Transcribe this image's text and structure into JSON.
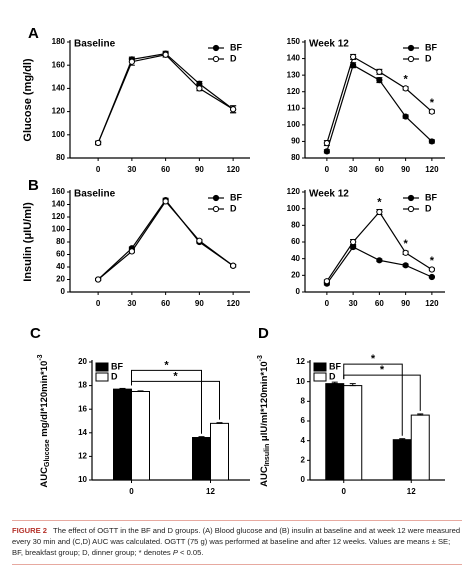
{
  "chart_data": [
    {
      "type": "line",
      "panel": "A",
      "title": "Baseline",
      "ylabel": "Glucose (mg/dl)",
      "x": [
        0,
        30,
        60,
        90,
        120
      ],
      "xticks": [
        0,
        30,
        60,
        90,
        120
      ],
      "xlim": [
        -25,
        135
      ],
      "ylim": [
        80,
        180
      ],
      "yticks": [
        80,
        100,
        120,
        140,
        160,
        180
      ],
      "legend": "upper right",
      "series": [
        {
          "name": "BF",
          "color": "#000000",
          "marker_fill": "#000000",
          "values": [
            93,
            165,
            170,
            144,
            122
          ],
          "errors": [
            1.5,
            2,
            2,
            2,
            3
          ]
        },
        {
          "name": "D",
          "color": "#000000",
          "marker_fill": "#ffffff",
          "values": [
            93,
            163,
            169,
            140,
            122
          ],
          "errors": [
            1.5,
            3,
            2,
            2,
            3
          ]
        }
      ]
    },
    {
      "type": "line",
      "title": "Week 12",
      "x": [
        0,
        30,
        60,
        90,
        120
      ],
      "xticks": [
        0,
        30,
        60,
        90,
        120
      ],
      "xlim": [
        -25,
        135
      ],
      "ylim": [
        80,
        150
      ],
      "yticks": [
        80,
        90,
        100,
        110,
        120,
        130,
        140,
        150
      ],
      "legend": "upper right",
      "series": [
        {
          "name": "BF",
          "color": "#000000",
          "marker_fill": "#000000",
          "values": [
            84,
            136,
            127,
            105,
            90
          ],
          "errors": [
            1,
            1.5,
            1.5,
            1,
            1
          ]
        },
        {
          "name": "D",
          "color": "#000000",
          "marker_fill": "#ffffff",
          "values": [
            89,
            141,
            132,
            122,
            108
          ],
          "errors": [
            1.5,
            1.5,
            1.5,
            1,
            1
          ]
        }
      ],
      "annotations": [
        {
          "x": 90,
          "text": "*"
        },
        {
          "x": 120,
          "text": "*"
        }
      ]
    },
    {
      "type": "line",
      "panel": "B",
      "title": "Baseline",
      "ylabel": "Insulin (μIU/ml)",
      "x": [
        0,
        30,
        60,
        90,
        120
      ],
      "xticks": [
        0,
        30,
        60,
        90,
        120
      ],
      "xlim": [
        -25,
        135
      ],
      "ylim": [
        0,
        160
      ],
      "yticks": [
        0,
        20,
        40,
        60,
        80,
        100,
        120,
        140,
        160
      ],
      "legend": "upper right",
      "series": [
        {
          "name": "BF",
          "color": "#000000",
          "marker_fill": "#000000",
          "values": [
            20,
            70,
            147,
            80,
            42
          ],
          "errors": [
            1.5,
            2,
            3,
            2,
            2
          ]
        },
        {
          "name": "D",
          "color": "#000000",
          "marker_fill": "#ffffff",
          "values": [
            20,
            65,
            145,
            82,
            42
          ],
          "errors": [
            1.5,
            2,
            3,
            2,
            2
          ]
        }
      ]
    },
    {
      "type": "line",
      "title": "Week 12",
      "x": [
        0,
        30,
        60,
        90,
        120
      ],
      "xticks": [
        0,
        30,
        60,
        90,
        120
      ],
      "xlim": [
        -25,
        135
      ],
      "ylim": [
        0,
        120
      ],
      "yticks": [
        0,
        20,
        40,
        60,
        80,
        100,
        120
      ],
      "legend": "upper right",
      "series": [
        {
          "name": "BF",
          "color": "#000000",
          "marker_fill": "#000000",
          "values": [
            10,
            54,
            38,
            32,
            18
          ],
          "errors": [
            1.5,
            2,
            1.5,
            1.5,
            1
          ]
        },
        {
          "name": "D",
          "color": "#000000",
          "marker_fill": "#ffffff",
          "values": [
            13,
            60,
            96,
            47,
            27
          ],
          "errors": [
            1.5,
            3,
            3,
            2,
            1.5
          ]
        }
      ],
      "annotations": [
        {
          "x": 60,
          "text": "*"
        },
        {
          "x": 90,
          "text": "*"
        },
        {
          "x": 120,
          "text": "*"
        }
      ]
    },
    {
      "type": "bar",
      "panel": "C",
      "ylabel_parts": [
        {
          "text": "AUC"
        },
        {
          "text": "Glucose",
          "sub": true
        },
        {
          "text": " mg/dl*120min*10"
        },
        {
          "text": "-3",
          "sup": true
        }
      ],
      "categories": [
        "0",
        "12"
      ],
      "ylim": [
        10,
        20
      ],
      "yticks": [
        10,
        12,
        14,
        16,
        18,
        20
      ],
      "legend": "upper left",
      "series": [
        {
          "name": "BF",
          "color": "#000000",
          "values": [
            17.7,
            13.6
          ],
          "errors": [
            0.06,
            0.07
          ]
        },
        {
          "name": "D",
          "color": "#ffffff",
          "values": [
            17.5,
            14.8
          ],
          "errors": [
            0.05,
            0.06
          ]
        }
      ],
      "annotations": [
        "*",
        "*"
      ]
    },
    {
      "type": "bar",
      "panel": "D",
      "ylabel_parts": [
        {
          "text": "AUC"
        },
        {
          "text": "Insulin",
          "sub": true
        },
        {
          "text": " μIU/ml*120min*10"
        },
        {
          "text": "-3",
          "sup": true
        }
      ],
      "categories": [
        "0",
        "12"
      ],
      "ylim": [
        0,
        12
      ],
      "yticks": [
        0,
        2,
        4,
        6,
        8,
        10,
        12
      ],
      "legend": "upper left",
      "series": [
        {
          "name": "BF",
          "color": "#000000",
          "values": [
            9.8,
            4.1
          ],
          "errors": [
            0.15,
            0.1
          ]
        },
        {
          "name": "D",
          "color": "#ffffff",
          "values": [
            9.6,
            6.6
          ],
          "errors": [
            0.2,
            0.12
          ]
        }
      ],
      "annotations": [
        "*",
        "*"
      ]
    }
  ],
  "caption": {
    "label": "FIGURE 2",
    "parts": [
      {
        "text": "The effect of OGTT in the BF and D groups. (A) Blood glucose and (B) insulin at baseline and at week 12 were measured every 30 min and (C,D) AUC was calculated. OGTT (75 g) was performed at baseline and after 12 weeks. Values are means ± SE; BF, breakfast group; D, dinner group; * denotes "
      },
      {
        "text": "P",
        "italic": true
      },
      {
        "text": " < 0.05."
      }
    ]
  }
}
